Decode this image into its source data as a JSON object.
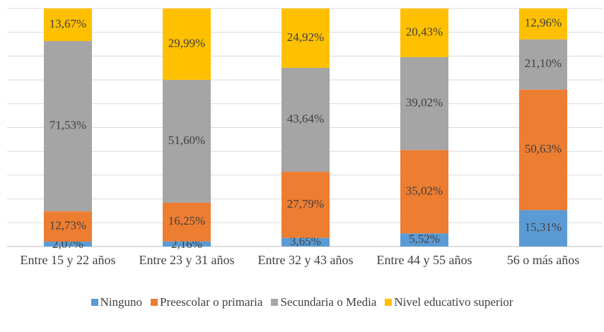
{
  "chart_data": {
    "type": "stacked_bar",
    "categories": [
      "Entre 15 y 22 años",
      "Entre 23 y 31 años",
      "Entre 32 y 43 años",
      "Entre 44 y 55 años",
      "56 o más años"
    ],
    "series": [
      {
        "name": "Ninguno",
        "color": "#5b9bd5",
        "values": [
          2.07,
          2.16,
          3.65,
          5.52,
          15.31
        ],
        "value_labels": [
          "2,07%",
          "2,16%",
          "3,65%",
          "5,52%",
          "15,31%"
        ]
      },
      {
        "name": "Preescolar o primaria",
        "color": "#ed7d31",
        "values": [
          12.73,
          16.25,
          27.79,
          35.02,
          50.63
        ],
        "value_labels": [
          "12,73%",
          "16,25%",
          "27,79%",
          "35,02%",
          "50,63%"
        ]
      },
      {
        "name": "Secundaria o Media",
        "color": "#a5a5a5",
        "values": [
          71.53,
          51.6,
          43.64,
          39.02,
          21.1
        ],
        "value_labels": [
          "71,53%",
          "51,60%",
          "43,64%",
          "39,02%",
          "21,10%"
        ]
      },
      {
        "name": "Nivel educativo superior",
        "color": "#ffc000",
        "values": [
          13.67,
          29.99,
          24.92,
          20.43,
          12.96
        ],
        "value_labels": [
          "13,67%",
          "29,99%",
          "24,92%",
          "20,43%",
          "12,96%"
        ]
      }
    ],
    "ylim": [
      0,
      100
    ],
    "yticks": [
      0,
      10,
      20,
      30,
      40,
      50,
      60,
      70,
      80,
      90,
      100
    ],
    "grid": true,
    "legend": "bottom"
  }
}
